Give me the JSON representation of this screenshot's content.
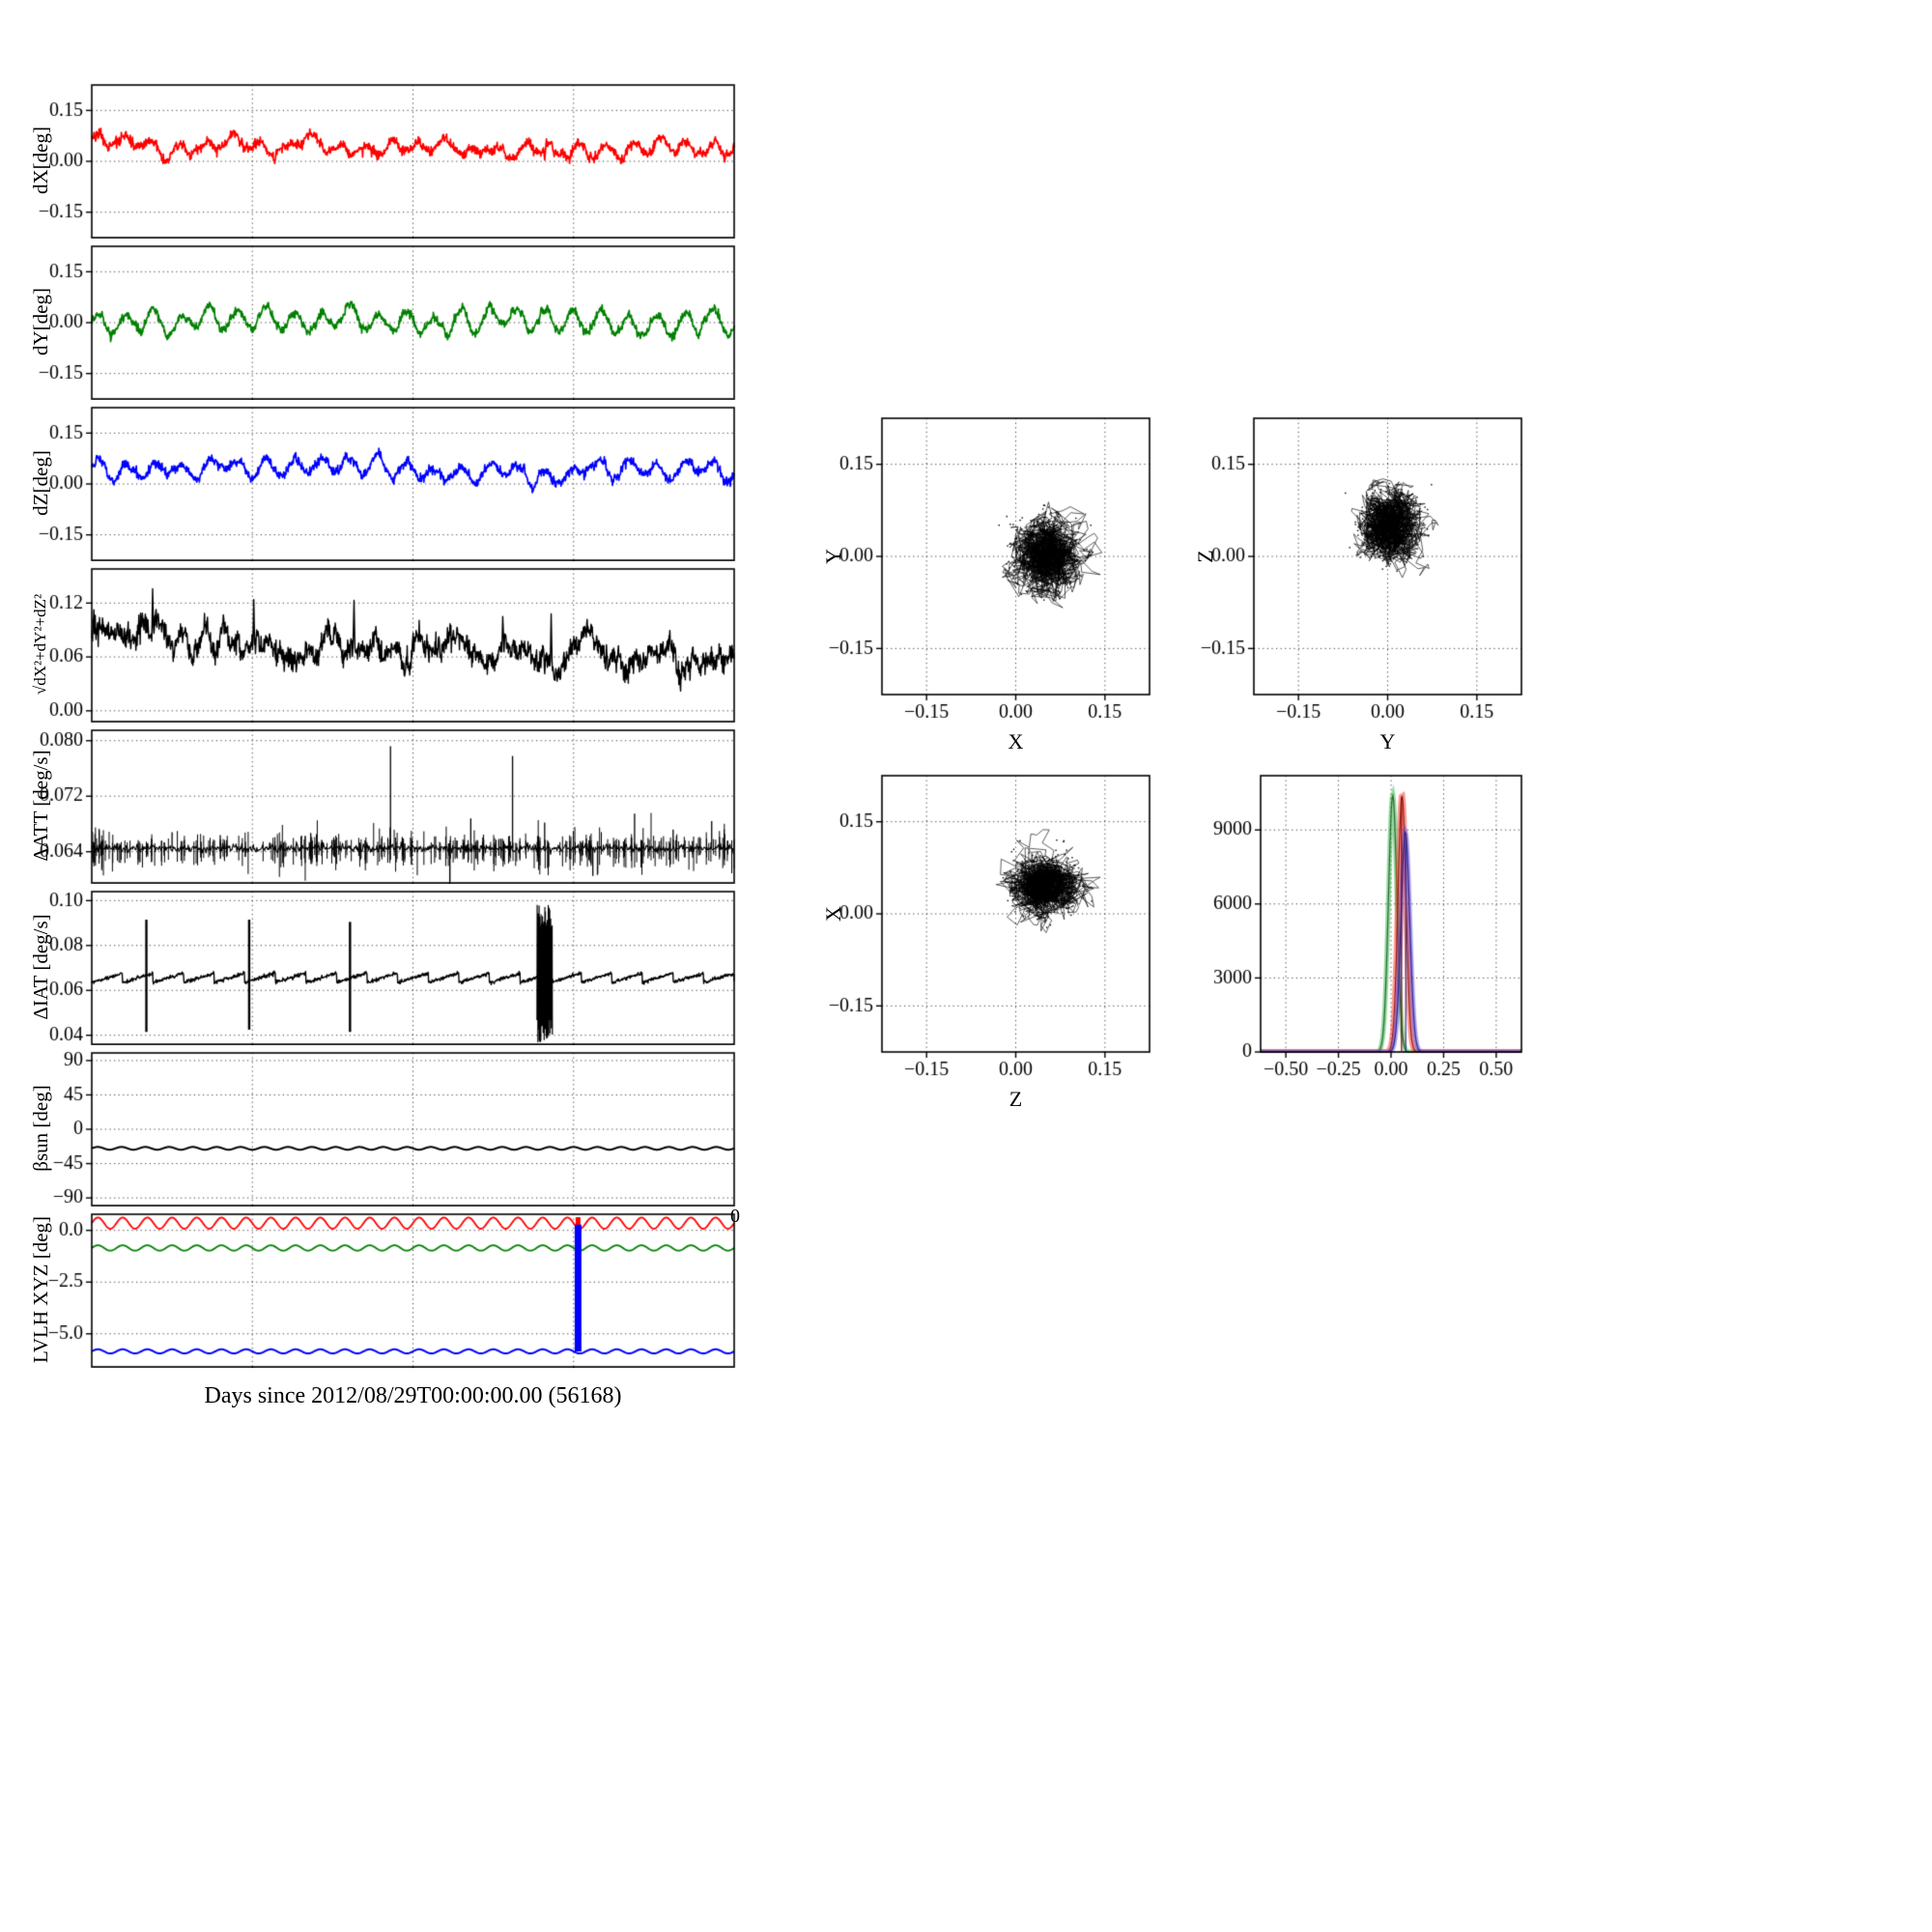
{
  "figure": {
    "xlabel": "Days since 2012/08/29T00:00:00.00 (56168)",
    "stray_tick_label": "0"
  },
  "chart_data": [
    {
      "id": "dx",
      "type": "line",
      "ylabel": "dX[deg]",
      "xlim": [
        0,
        1
      ],
      "xticks": [
        0.25,
        0.5,
        0.75
      ],
      "ylim": [
        -0.225,
        0.225
      ],
      "yticks": [
        -0.15,
        0,
        0.15
      ],
      "ytick_labels": [
        "−0.15",
        "0.00",
        "0.15"
      ],
      "series": [
        {
          "color": "#ff0000",
          "kind": "noisy",
          "base": 0.052,
          "slope": -0.014,
          "amp": 0.016,
          "cycles": 24,
          "noise": 0.013,
          "lw": 1.7,
          "seed": 11,
          "spikes": [
            {
              "x": 0.705,
              "y": 0.004
            },
            {
              "x": 0.985,
              "y": -0.002
            }
          ]
        }
      ]
    },
    {
      "id": "dy",
      "type": "line",
      "ylabel": "dY[deg]",
      "xlim": [
        0,
        1
      ],
      "xticks": [
        0.25,
        0.5,
        0.75
      ],
      "ylim": [
        -0.225,
        0.225
      ],
      "yticks": [
        -0.15,
        0,
        0.15
      ],
      "ytick_labels": [
        "−0.15",
        "0.00",
        "0.15"
      ],
      "series": [
        {
          "color": "#008000",
          "kind": "noisy",
          "base": 0.003,
          "slope": 0,
          "amp": 0.028,
          "cycles": 23,
          "noise": 0.012,
          "lw": 1.7,
          "seed": 22
        }
      ]
    },
    {
      "id": "dz",
      "type": "line",
      "ylabel": "dZ[deg]",
      "xlim": [
        0,
        1
      ],
      "xticks": [
        0.25,
        0.5,
        0.75
      ],
      "ylim": [
        -0.225,
        0.225
      ],
      "yticks": [
        -0.15,
        0,
        0.15
      ],
      "ytick_labels": [
        "−0.15",
        "0.00",
        "0.15"
      ],
      "series": [
        {
          "color": "#0000ff",
          "kind": "noisy",
          "base": 0.047,
          "slope": -0.008,
          "amp": 0.021,
          "cycles": 23,
          "noise": 0.012,
          "lw": 1.7,
          "seed": 33
        }
      ]
    },
    {
      "id": "dsum",
      "type": "line",
      "ylabel": "√dX²+dY²+dZ²",
      "xlim": [
        0,
        1
      ],
      "xticks": [
        0.25,
        0.5,
        0.75
      ],
      "ylim": [
        -0.012,
        0.158
      ],
      "yticks": [
        0,
        0.06,
        0.12
      ],
      "ytick_labels": [
        "0.00",
        "0.06",
        "0.12"
      ],
      "series": [
        {
          "color": "#000000",
          "kind": "noisy",
          "base": 0.082,
          "slope": -0.028,
          "amp": 0.005,
          "cycles": 30,
          "noise": 0.012,
          "lw": 1.4,
          "seed": 44,
          "clamp": [
            0.022,
            0.15
          ],
          "spikes": [
            {
              "x": 0.095,
              "y": 0.136
            },
            {
              "x": 0.252,
              "y": 0.124
            },
            {
              "x": 0.408,
              "y": 0.123
            },
            {
              "x": 0.64,
              "y": 0.105
            },
            {
              "x": 0.715,
              "y": 0.108
            }
          ]
        }
      ]
    },
    {
      "id": "datt",
      "type": "line",
      "ylabel": "ΔATT [deg/s]",
      "xlim": [
        0,
        1
      ],
      "xticks": [
        0.25,
        0.5,
        0.75
      ],
      "ylim": [
        0.0595,
        0.0815
      ],
      "yticks": [
        0.064,
        0.072,
        0.08
      ],
      "ytick_labels": [
        "0.064",
        "0.072",
        "0.080"
      ],
      "series": [
        {
          "color": "#000000",
          "kind": "hairs",
          "base": 0.0645,
          "lw": 1.1,
          "seed": 55,
          "spikes": [
            {
              "x": 0.125,
              "y": 0.0668
            },
            {
              "x": 0.2,
              "y": 0.0664
            },
            {
              "x": 0.465,
              "y": 0.0792
            },
            {
              "x": 0.59,
              "y": 0.0688
            },
            {
              "x": 0.655,
              "y": 0.0778
            },
            {
              "x": 0.705,
              "y": 0.0682
            },
            {
              "x": 0.78,
              "y": 0.0605
            },
            {
              "x": 0.845,
              "y": 0.0695
            },
            {
              "x": 0.905,
              "y": 0.0672
            },
            {
              "x": 0.965,
              "y": 0.0684
            }
          ]
        }
      ]
    },
    {
      "id": "diat",
      "type": "line",
      "ylabel": "ΔIAT [deg/s]",
      "xlim": [
        0,
        1
      ],
      "xticks": [
        0.25,
        0.5,
        0.75
      ],
      "ylim": [
        0.036,
        0.104
      ],
      "yticks": [
        0.04,
        0.06,
        0.08,
        0.1
      ],
      "ytick_labels": [
        "0.04",
        "0.06",
        "0.08",
        "0.10"
      ],
      "series": [
        {
          "color": "#000000",
          "kind": "saw",
          "base": 0.0635,
          "tooth": 0.0042,
          "teeth": 21,
          "lw": 1.4,
          "seed": 66,
          "vspikes": [
            {
              "x": 0.085,
              "y0": 0.0415,
              "y1": 0.0915,
              "lw": 2.4
            },
            {
              "x": 0.245,
              "y0": 0.0425,
              "y1": 0.0915,
              "lw": 2.4
            },
            {
              "x": 0.402,
              "y0": 0.0415,
              "y1": 0.0905,
              "lw": 2.4
            }
          ],
          "burst": {
            "x": 0.705,
            "w": 0.024,
            "lo": 0.043,
            "hi": 0.092,
            "seg": 64
          }
        }
      ]
    },
    {
      "id": "bsun",
      "type": "line",
      "ylabel": "βsun [deg]",
      "xlim": [
        0,
        1
      ],
      "xticks": [
        0.25,
        0.5,
        0.75
      ],
      "ylim": [
        -100,
        100
      ],
      "yticks": [
        -90,
        -45,
        0,
        45,
        90
      ],
      "ytick_labels": [
        "−90",
        "−45",
        "0",
        "45",
        "90"
      ],
      "series": [
        {
          "color": "#000000",
          "kind": "wave",
          "base": -25,
          "amp": 1.8,
          "cycles": 27,
          "lw": 2,
          "seed": 77
        }
      ]
    },
    {
      "id": "lvlh",
      "type": "line",
      "ylabel": "LVLH XYZ [deg]",
      "xlim": [
        0,
        1
      ],
      "xticks": [
        0.25,
        0.5,
        0.75
      ],
      "ylim": [
        -6.6,
        0.78
      ],
      "yticks": [
        0,
        -2.5,
        -5
      ],
      "ytick_labels": [
        "0.0",
        "−2.5",
        "−5.0"
      ],
      "series": [
        {
          "color": "#ff0000",
          "kind": "wave",
          "base": 0.35,
          "amp": 0.27,
          "cycles": 26,
          "lw": 1.8,
          "seed": 81,
          "vspikes": [
            {
              "x": 0.757,
              "y0": 0.07,
              "y1": 0.64,
              "lw": 5
            }
          ]
        },
        {
          "color": "#008000",
          "kind": "wave",
          "base": -0.85,
          "amp": 0.13,
          "cycles": 26,
          "lw": 1.8,
          "seed": 82
        },
        {
          "color": "#0000ff",
          "kind": "wave",
          "base": -5.85,
          "amp": 0.1,
          "cycles": 26,
          "lw": 2,
          "seed": 83,
          "vspikes": [
            {
              "x": 0.757,
              "y0": -5.85,
              "y1": 0.28,
              "lw": 7
            }
          ]
        }
      ]
    },
    {
      "id": "sc_yx",
      "type": "scatter",
      "xlabel": "X",
      "ylabel": "Y",
      "xlim": [
        -0.225,
        0.225
      ],
      "xticks": [
        -0.15,
        0,
        0.15
      ],
      "xtick_labels": [
        "−0.15",
        "0.00",
        "0.15"
      ],
      "ylim": [
        -0.225,
        0.225
      ],
      "yticks": [
        -0.15,
        0,
        0.15
      ],
      "ytick_labels": [
        "−0.15",
        "0.00",
        "0.15"
      ],
      "cluster": {
        "cx": 0.05,
        "cy": 0.005,
        "sx": 0.026,
        "sy": 0.028,
        "n": 1600,
        "seed": 91
      }
    },
    {
      "id": "sc_zy",
      "type": "scatter",
      "xlabel": "Y",
      "ylabel": "Z",
      "xlim": [
        -0.225,
        0.225
      ],
      "xticks": [
        -0.15,
        0,
        0.15
      ],
      "xtick_labels": [
        "−0.15",
        "0.00",
        "0.15"
      ],
      "ylim": [
        -0.225,
        0.225
      ],
      "yticks": [
        -0.15,
        0,
        0.15
      ],
      "ytick_labels": [
        "−0.15",
        "0.00",
        "0.15"
      ],
      "cluster": {
        "cx": 0.004,
        "cy": 0.048,
        "sx": 0.025,
        "sy": 0.026,
        "n": 1600,
        "seed": 92
      }
    },
    {
      "id": "sc_xz",
      "type": "scatter",
      "xlabel": "Z",
      "ylabel": "X",
      "xlim": [
        -0.225,
        0.225
      ],
      "xticks": [
        -0.15,
        0,
        0.15
      ],
      "xtick_labels": [
        "−0.15",
        "0.00",
        "0.15"
      ],
      "ylim": [
        -0.225,
        0.225
      ],
      "yticks": [
        -0.15,
        0,
        0.15
      ],
      "ytick_labels": [
        "−0.15",
        "0.00",
        "0.15"
      ],
      "cluster": {
        "cx": 0.05,
        "cy": 0.048,
        "sx": 0.027,
        "sy": 0.024,
        "n": 1600,
        "seed": 93
      }
    },
    {
      "id": "hist",
      "type": "hist",
      "xlim": [
        -0.62,
        0.62
      ],
      "xticks": [
        -0.5,
        -0.25,
        0,
        0.25,
        0.5
      ],
      "xtick_labels": [
        "−0.50",
        "−0.25",
        "0.00",
        "0.25",
        "0.50"
      ],
      "ylim": [
        0,
        11200
      ],
      "yticks": [
        0,
        3000,
        6000,
        9000
      ],
      "ytick_labels": [
        "0",
        "3000",
        "6000",
        "9000"
      ],
      "curves": [
        {
          "color": "#44bb55",
          "center": 0.008,
          "sigma": 0.02,
          "peak": 10400,
          "lw": 5,
          "alpha": 0.55
        },
        {
          "color": "#ff3322",
          "center": 0.052,
          "sigma": 0.019,
          "peak": 10400,
          "lw": 6,
          "alpha": 0.5
        },
        {
          "color": "#5544ee",
          "center": 0.068,
          "sigma": 0.021,
          "peak": 8900,
          "lw": 5,
          "alpha": 0.5
        }
      ],
      "vlines": [
        {
          "x": 0.05,
          "y1": 10300,
          "color": "#880000"
        },
        {
          "x": 0.07,
          "y1": 8800,
          "color": "#333388"
        }
      ]
    }
  ]
}
